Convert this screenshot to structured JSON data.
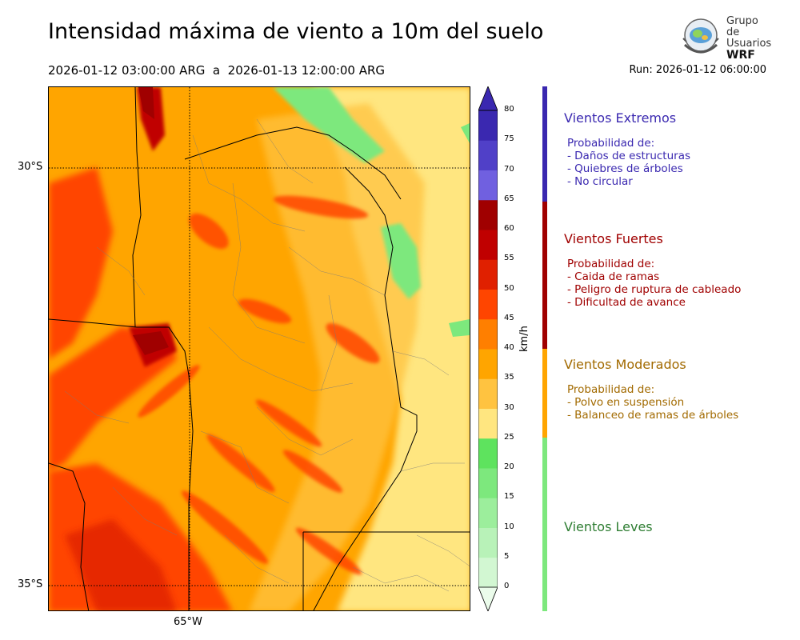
{
  "header": {
    "title": "Intensidad máxima de viento a 10m del suelo",
    "period": "2026-01-12 03:00:00 ARG  a  2026-01-13 12:00:00 ARG",
    "run": "Run: 2026-01-12 06:00:00"
  },
  "logo": {
    "line1": "Grupo de",
    "line2": "Usuarios",
    "line3": "WRF"
  },
  "map": {
    "lat_labels": [
      "30°S",
      "35°S"
    ],
    "lon_labels": [
      "65°W"
    ]
  },
  "colorbar": {
    "unit": "km/h",
    "ticks": [
      "0",
      "5",
      "10",
      "15",
      "20",
      "25",
      "30",
      "35",
      "40",
      "45",
      "50",
      "55",
      "60",
      "65",
      "70",
      "75",
      "80"
    ],
    "colors": [
      "#ebfceb",
      "#d2f7d2",
      "#b8f2b8",
      "#9cee9c",
      "#7de87d",
      "#5ee35e",
      "#ffe680",
      "#ffc340",
      "#ffa500",
      "#ff7f00",
      "#ff4500",
      "#e02000",
      "#c00000",
      "#a00000",
      "#7060e0",
      "#5040c8",
      "#3a28b0"
    ]
  },
  "categories": [
    {
      "title": "Vientos Extremos",
      "color": "#3a28b0",
      "lines": [
        "Probabilidad de:",
        "- Daños de estructuras",
        "- Quiebres de árboles",
        "- No circular"
      ]
    },
    {
      "title": "Vientos Fuertes",
      "color": "#a00000",
      "lines": [
        "Probabilidad de:",
        "- Caida de ramas",
        "- Peligro de ruptura de cableado",
        "- Dificultad de avance"
      ]
    },
    {
      "title": "Vientos Moderados",
      "color": "#a26a00",
      "lines": [
        "Probabilidad de:",
        "- Polvo en suspensión",
        "- Balanceo de ramas de árboles"
      ]
    },
    {
      "title": "Vientos Leves",
      "color": "#2e7d32",
      "lines": []
    }
  ],
  "bands": {
    "extremos": "#3a28b0",
    "fuertes": "#a00000",
    "moderados": "#ffa500",
    "leves": "#7de87d"
  }
}
